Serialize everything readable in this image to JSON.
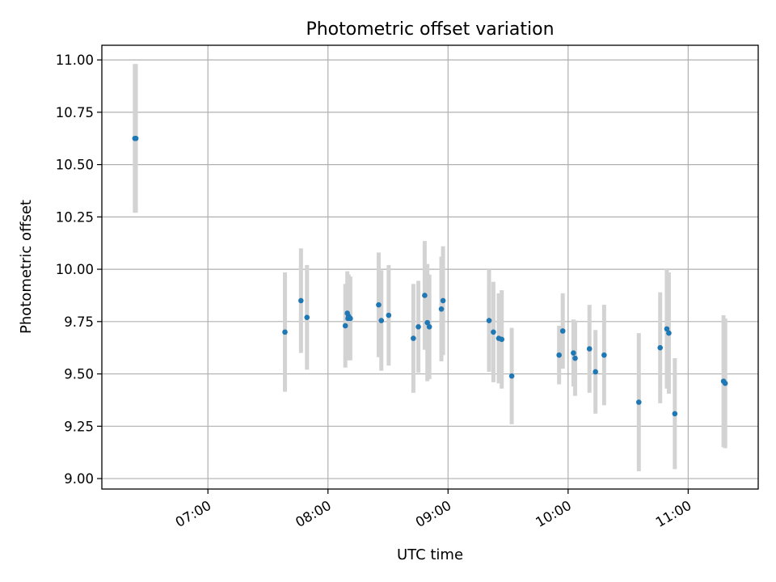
{
  "chart_data": {
    "type": "scatter",
    "title": "Photometric offset variation",
    "xlabel": "UTC time",
    "ylabel": "Photometric offset",
    "xlim": [
      "06:07",
      "11:35"
    ],
    "ylim": [
      8.95,
      11.07
    ],
    "grid": true,
    "x_ticks": [
      "07:00",
      "08:00",
      "09:00",
      "10:00",
      "11:00"
    ],
    "y_ticks": [
      "9.00",
      "9.25",
      "9.50",
      "9.75",
      "10.00",
      "10.25",
      "10.50",
      "10.75",
      "11.00"
    ],
    "colors": {
      "point": "#1f77b4",
      "errorbar": "#d3d3d3",
      "grid": "#b0b0b0"
    },
    "series": [
      {
        "points": [
          {
            "x": "06:23:30",
            "y": 10.625,
            "err": 0.355
          },
          {
            "x": "06:24:00",
            "y": 10.625,
            "err": 0.355
          },
          {
            "x": "07:38:30",
            "y": 9.7,
            "err": 0.285
          },
          {
            "x": "07:46:30",
            "y": 9.85,
            "err": 0.25
          },
          {
            "x": "07:49:30",
            "y": 9.77,
            "err": 0.25
          },
          {
            "x": "08:08:40",
            "y": 9.73,
            "err": 0.2
          },
          {
            "x": "08:09:40",
            "y": 9.79,
            "err": 0.2
          },
          {
            "x": "08:10:00",
            "y": 9.765,
            "err": 0.2
          },
          {
            "x": "08:10:20",
            "y": 9.775,
            "err": 0.2
          },
          {
            "x": "08:11:10",
            "y": 9.765,
            "err": 0.2
          },
          {
            "x": "08:25:20",
            "y": 9.83,
            "err": 0.25
          },
          {
            "x": "08:26:40",
            "y": 9.755,
            "err": 0.24
          },
          {
            "x": "08:30:20",
            "y": 9.78,
            "err": 0.24
          },
          {
            "x": "08:42:40",
            "y": 9.67,
            "err": 0.26
          },
          {
            "x": "08:45:10",
            "y": 9.725,
            "err": 0.22
          },
          {
            "x": "08:48:20",
            "y": 9.875,
            "err": 0.26
          },
          {
            "x": "08:49:40",
            "y": 9.745,
            "err": 0.28
          },
          {
            "x": "08:50:40",
            "y": 9.725,
            "err": 0.25
          },
          {
            "x": "08:56:40",
            "y": 9.81,
            "err": 0.25
          },
          {
            "x": "08:57:30",
            "y": 9.85,
            "err": 0.26
          },
          {
            "x": "09:20:30",
            "y": 9.755,
            "err": 0.245
          },
          {
            "x": "09:22:40",
            "y": 9.7,
            "err": 0.24
          },
          {
            "x": "09:25:20",
            "y": 9.67,
            "err": 0.215
          },
          {
            "x": "09:26:50",
            "y": 9.665,
            "err": 0.235
          },
          {
            "x": "09:31:50",
            "y": 9.49,
            "err": 0.23
          },
          {
            "x": "09:55:30",
            "y": 9.59,
            "err": 0.14
          },
          {
            "x": "09:57:20",
            "y": 9.705,
            "err": 0.18
          },
          {
            "x": "10:02:40",
            "y": 9.6,
            "err": 0.16
          },
          {
            "x": "10:03:30",
            "y": 9.575,
            "err": 0.18
          },
          {
            "x": "10:10:40",
            "y": 9.62,
            "err": 0.21
          },
          {
            "x": "10:13:40",
            "y": 9.51,
            "err": 0.2
          },
          {
            "x": "10:18:00",
            "y": 9.59,
            "err": 0.24
          },
          {
            "x": "10:35:20",
            "y": 9.365,
            "err": 0.33
          },
          {
            "x": "10:46:00",
            "y": 9.625,
            "err": 0.265
          },
          {
            "x": "10:49:20",
            "y": 9.715,
            "err": 0.285
          },
          {
            "x": "10:50:20",
            "y": 9.695,
            "err": 0.29
          },
          {
            "x": "10:53:20",
            "y": 9.31,
            "err": 0.265
          },
          {
            "x": "11:17:40",
            "y": 9.465,
            "err": 0.315
          },
          {
            "x": "11:18:30",
            "y": 9.455,
            "err": 0.31
          }
        ]
      }
    ]
  }
}
